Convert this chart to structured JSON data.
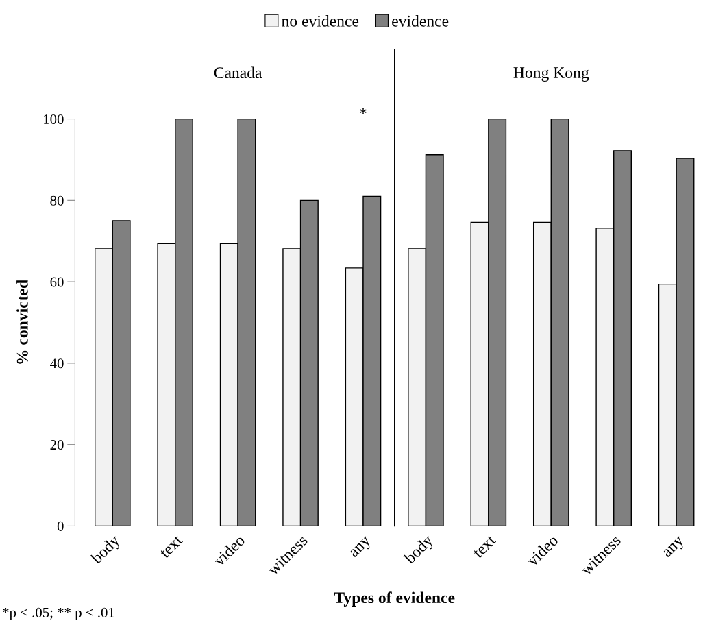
{
  "chart_data": {
    "type": "bar",
    "categories": [
      "body",
      "text",
      "video",
      "witness",
      "any",
      "body",
      "text",
      "video",
      "witness",
      "any"
    ],
    "series": [
      {
        "name": "no evidence",
        "color": "#f2f2f2",
        "values": [
          68.1,
          69.4,
          69.4,
          68.1,
          63.4,
          68.1,
          74.6,
          74.6,
          73.2,
          59.4
        ]
      },
      {
        "name": "evidence",
        "color": "#808080",
        "values": [
          75,
          100,
          100,
          80,
          81,
          91.2,
          100,
          100,
          92.2,
          90.3
        ]
      }
    ],
    "xlabel": "Types of evidence",
    "ylabel": "% convicted",
    "ylim": [
      0,
      100
    ],
    "yticks": [
      0,
      20,
      40,
      60,
      80,
      100
    ],
    "annotations": [
      "Canada",
      "Hong Kong",
      "*",
      "*p < .05; ** p < .01"
    ],
    "legend": "top",
    "grid": false
  }
}
